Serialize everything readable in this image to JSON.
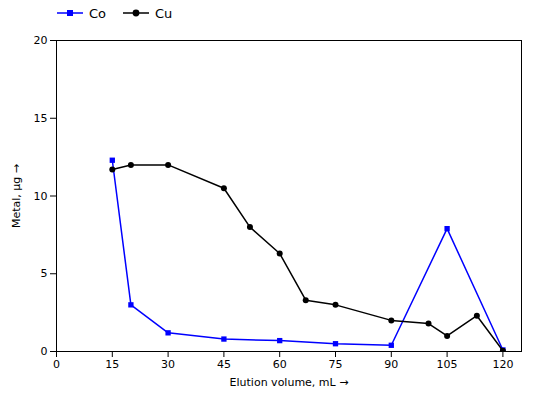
{
  "chart_data": {
    "type": "line",
    "xlabel": "Elution volume, mL",
    "ylabel": "Metal, μg",
    "series": [
      {
        "name": "Co",
        "color": "#0000ff",
        "marker": "square",
        "x": [
          15,
          20,
          30,
          45,
          60,
          75,
          90,
          105,
          120
        ],
        "values": [
          12.3,
          3.0,
          1.2,
          0.8,
          0.7,
          0.5,
          0.4,
          7.9,
          0.1
        ]
      },
      {
        "name": "Cu",
        "color": "#000000",
        "marker": "circle",
        "x": [
          15,
          20,
          30,
          45,
          52,
          60,
          67,
          75,
          90,
          100,
          105,
          113,
          120
        ],
        "values": [
          11.7,
          12.0,
          12.0,
          10.5,
          8.0,
          6.3,
          3.3,
          3.0,
          2.0,
          1.8,
          1.0,
          2.3,
          0.05
        ]
      }
    ],
    "xlim": [
      0,
      125
    ],
    "ylim": [
      0,
      20
    ],
    "xticks": [
      0,
      15,
      30,
      45,
      60,
      75,
      90,
      105,
      120
    ],
    "yticks": [
      0,
      5,
      10,
      15,
      20
    ],
    "grid": false,
    "legend": "upper left"
  }
}
